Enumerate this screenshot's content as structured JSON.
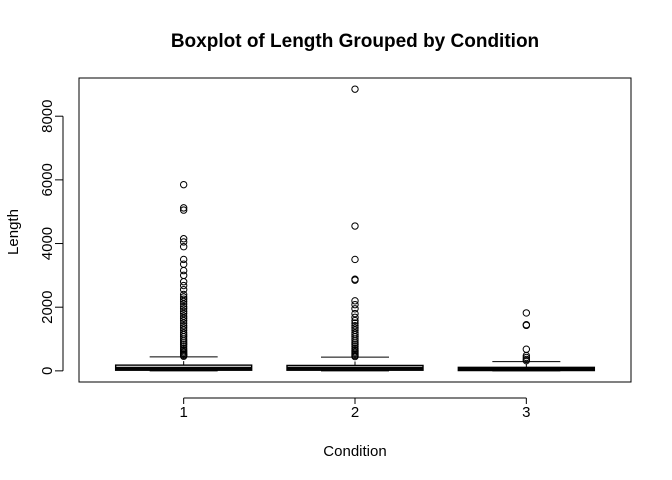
{
  "chart_data": {
    "type": "boxplot",
    "title": "Boxplot of Length Grouped by Condition",
    "xlabel": "Condition",
    "ylabel": "Length",
    "categories": [
      "1",
      "2",
      "3"
    ],
    "yticks": [
      0,
      2000,
      4000,
      6000,
      8000
    ],
    "ylim": [
      -350,
      9200
    ],
    "grid": false,
    "legend": "none",
    "boxes": [
      {
        "category": "1",
        "lower_whisker": 0,
        "q1": 20,
        "median": 80,
        "q3": 180,
        "upper_whisker": 440,
        "outliers": [
          460,
          490,
          520,
          560,
          600,
          650,
          700,
          760,
          820,
          880,
          940,
          1000,
          1070,
          1140,
          1200,
          1280,
          1350,
          1420,
          1500,
          1580,
          1650,
          1720,
          1800,
          1870,
          1950,
          2020,
          2100,
          2180,
          2250,
          2320,
          2400,
          2550,
          2680,
          2800,
          3000,
          3150,
          3350,
          3500,
          3900,
          4050,
          4150,
          5050,
          5120,
          5850
        ]
      },
      {
        "category": "2",
        "lower_whisker": 0,
        "q1": 20,
        "median": 80,
        "q3": 170,
        "upper_whisker": 430,
        "outliers": [
          450,
          480,
          520,
          560,
          600,
          650,
          700,
          760,
          820,
          880,
          940,
          1000,
          1070,
          1140,
          1200,
          1280,
          1350,
          1420,
          1500,
          1580,
          1680,
          1800,
          1950,
          2080,
          2200,
          2850,
          2880,
          3500,
          4550,
          8850
        ]
      },
      {
        "category": "3",
        "lower_whisker": 0,
        "q1": 10,
        "median": 50,
        "q3": 110,
        "upper_whisker": 290,
        "outliers": [
          320,
          360,
          420,
          480,
          680,
          1430,
          1450,
          1820
        ]
      }
    ]
  }
}
